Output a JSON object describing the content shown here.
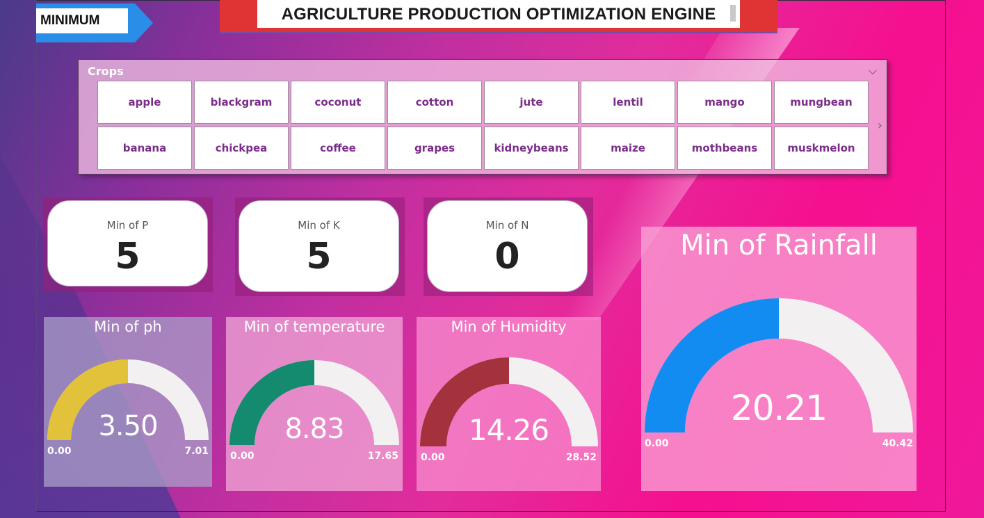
{
  "header": {
    "tag": "MINIMUM",
    "title": "AGRICULTURE PRODUCTION OPTIMIZATION ENGINE"
  },
  "slicer": {
    "title": "Crops",
    "items": [
      "apple",
      "blackgram",
      "coconut",
      "cotton",
      "jute",
      "lentil",
      "mango",
      "mungbean",
      "banana",
      "chickpea",
      "coffee",
      "grapes",
      "kidneybeans",
      "maize",
      "mothbeans",
      "muskmelon"
    ]
  },
  "cards": [
    {
      "label": "Min of P",
      "value": "5"
    },
    {
      "label": "Min of K",
      "value": "5"
    },
    {
      "label": "Min of N",
      "value": "0"
    }
  ],
  "gauges": [
    {
      "title": "Min of ph",
      "value": "3.50",
      "min": "0.00",
      "max": "7.01",
      "fraction": 0.5,
      "color": "#e2c23a"
    },
    {
      "title": "Min of temperature",
      "value": "8.83",
      "min": "0.00",
      "max": "17.65",
      "fraction": 0.5,
      "color": "#148a6e"
    },
    {
      "title": "Min of Humidity",
      "value": "14.26",
      "min": "0.00",
      "max": "28.52",
      "fraction": 0.5,
      "color": "#a3323c"
    },
    {
      "title": "Min of Rainfall",
      "value": "20.21",
      "min": "0.00",
      "max": "40.42",
      "fraction": 0.5,
      "color": "#138cf2"
    }
  ],
  "colors": {
    "track": "#f2f0f0",
    "slicer_text": "#7b2d8a"
  }
}
